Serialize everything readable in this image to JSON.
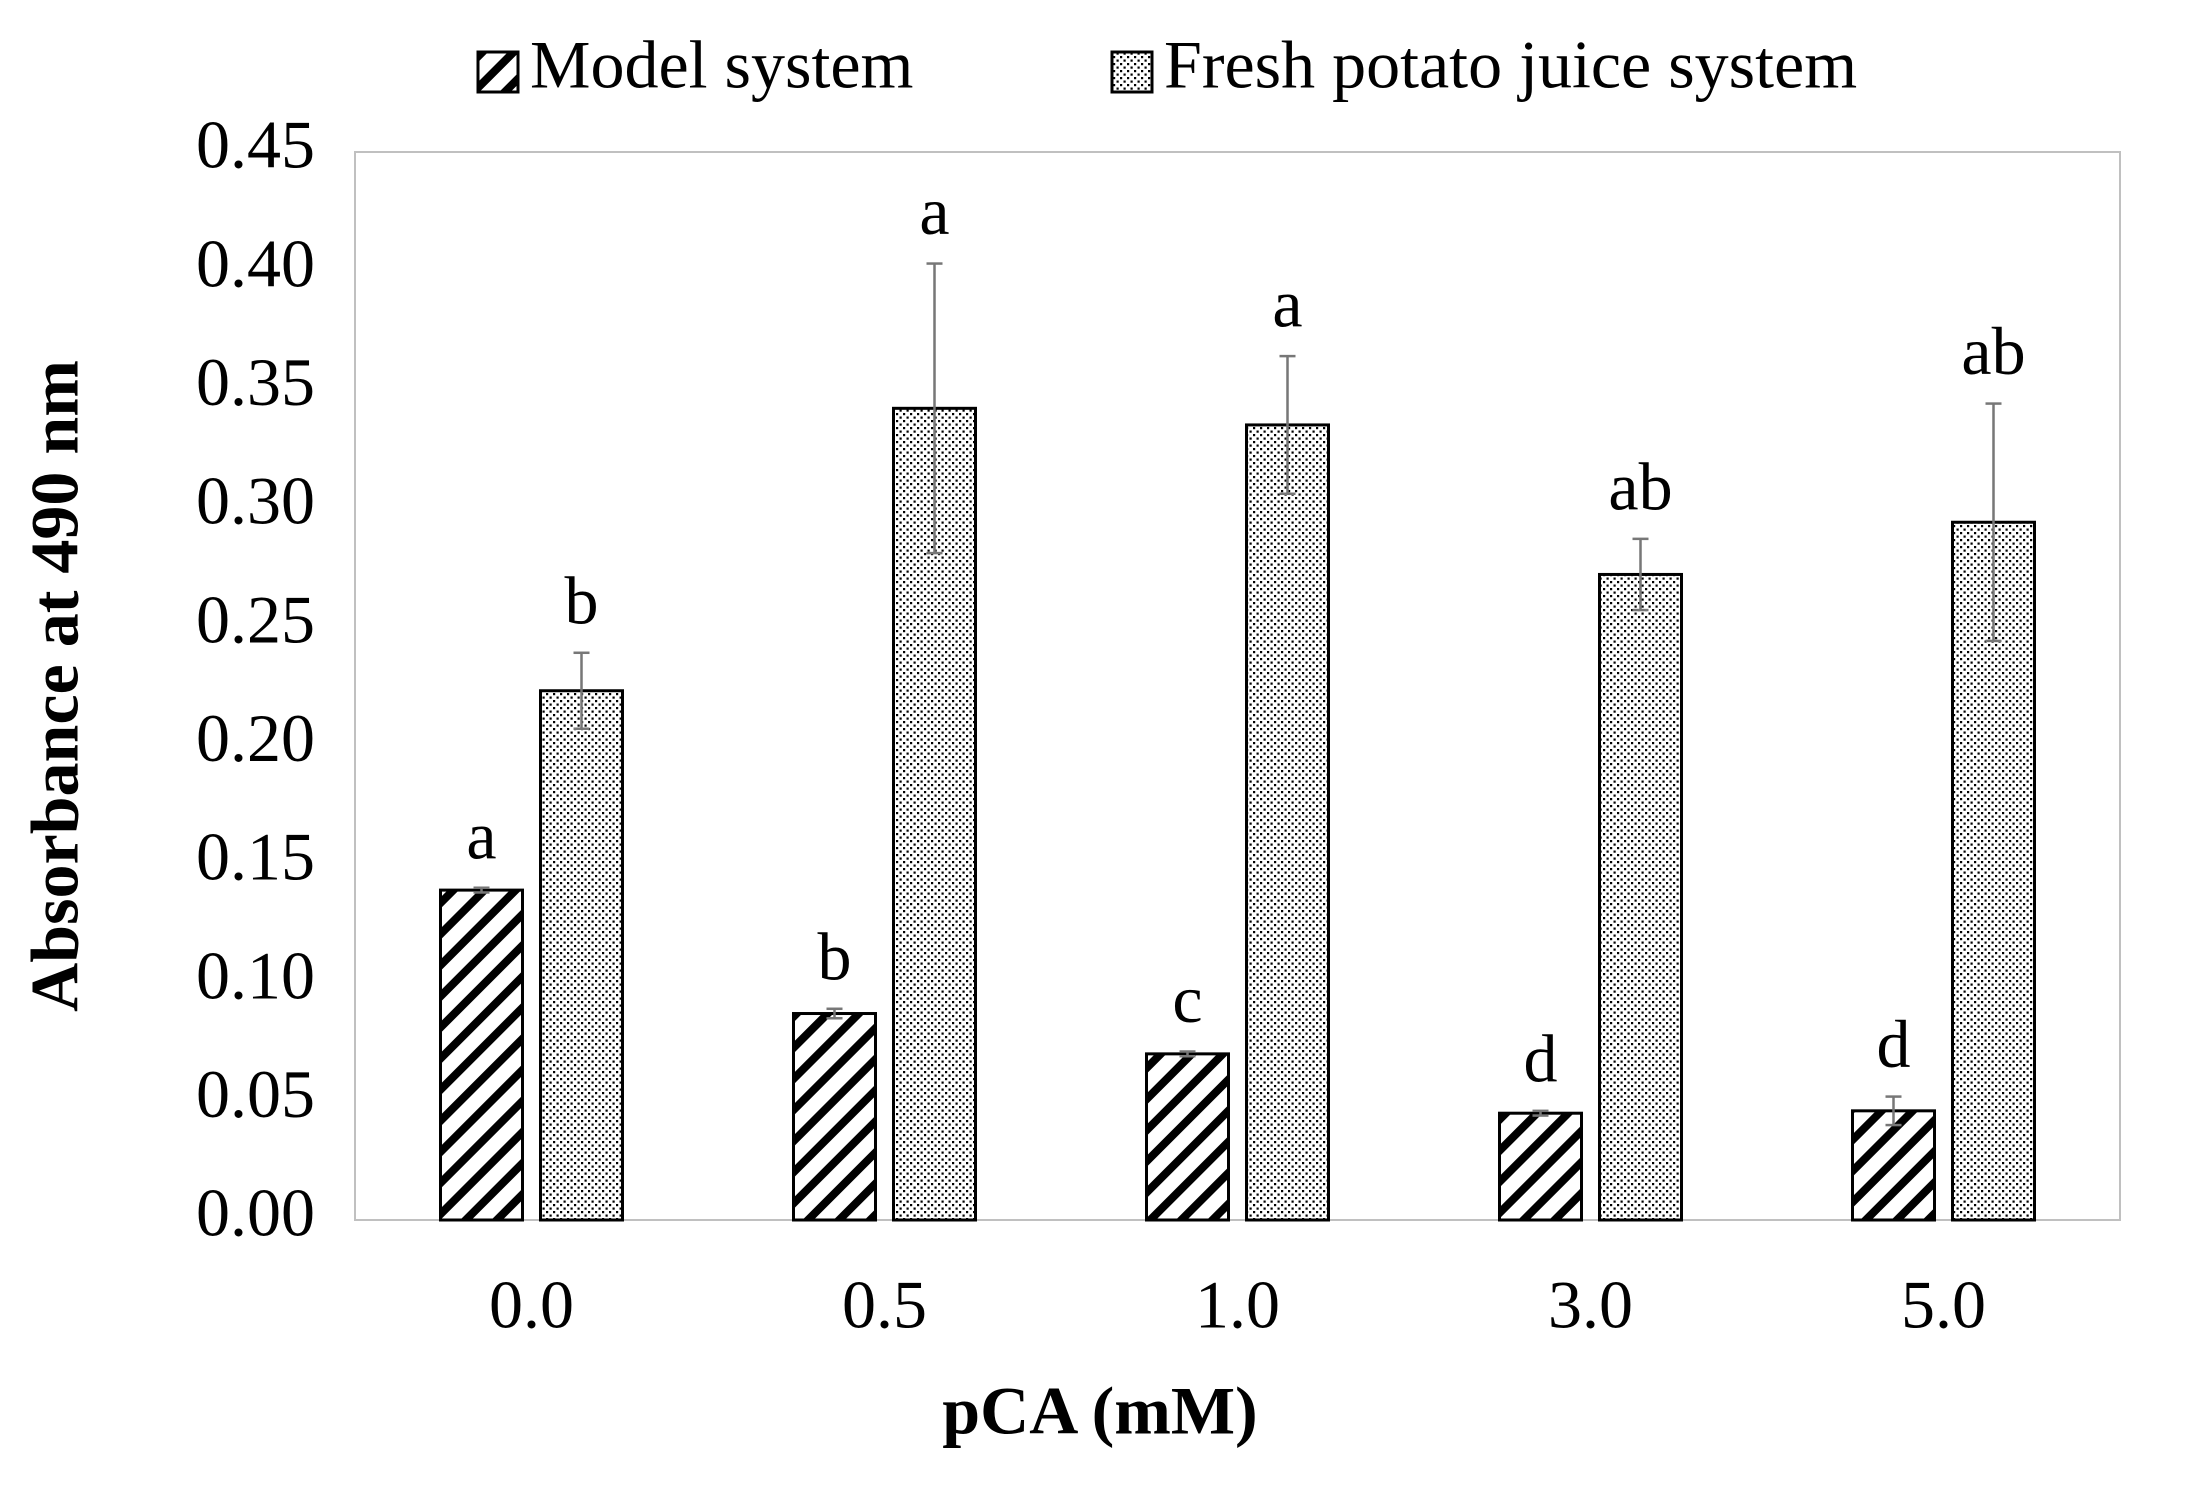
{
  "chart_data": {
    "type": "bar",
    "x_label": "pCA (mM)",
    "y_label": "Absorbance at 490 nm",
    "categories": [
      "0.0",
      "0.5",
      "1.0",
      "3.0",
      "5.0"
    ],
    "series": [
      {
        "name": "Model system",
        "color": "#000000",
        "pattern": "hatch",
        "values": [
          0.139,
          0.087,
          0.07,
          0.045,
          0.046
        ],
        "errors": [
          0.001,
          0.002,
          0.001,
          0.001,
          0.006
        ],
        "labels": [
          "a",
          "b",
          "c",
          "d",
          "d"
        ]
      },
      {
        "name": "Fresh potato juice system",
        "color": "#000000",
        "pattern": "dots",
        "values": [
          0.223,
          0.342,
          0.335,
          0.272,
          0.294
        ],
        "errors": [
          0.016,
          0.061,
          0.029,
          0.015,
          0.05
        ],
        "labels": [
          "b",
          "a",
          "a",
          "ab",
          "ab"
        ]
      }
    ],
    "ylim": [
      0,
      0.45
    ],
    "yticks": [
      {
        "value": 0,
        "label": "0.00"
      },
      {
        "value": 0.05,
        "label": "0.05"
      },
      {
        "value": 0.1,
        "label": "0.10"
      },
      {
        "value": 0.15,
        "label": "0.15"
      },
      {
        "value": 0.2,
        "label": "0.20"
      },
      {
        "value": 0.25,
        "label": "0.25"
      },
      {
        "value": 0.3,
        "label": "0.30"
      },
      {
        "value": 0.35,
        "label": "0.35"
      },
      {
        "value": 0.4,
        "label": "0.40"
      },
      {
        "value": 0.45,
        "label": "0.45"
      }
    ],
    "grid": false,
    "legend": "top"
  }
}
